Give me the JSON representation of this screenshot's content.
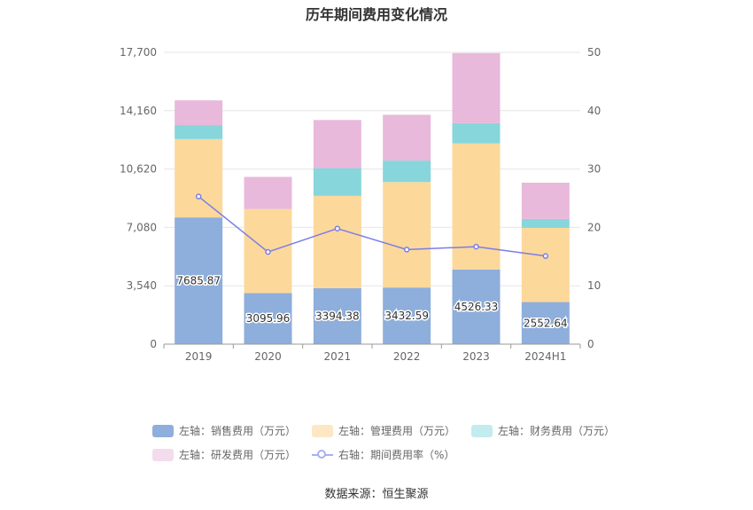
{
  "chart_data": {
    "type": "bar",
    "title": "历年期间费用变化情况",
    "categories": [
      "2019",
      "2020",
      "2021",
      "2022",
      "2023",
      "2024H1"
    ],
    "left_axis": {
      "min": 0,
      "max": 17700,
      "ticks": [
        "0",
        "3,540",
        "7,080",
        "10,620",
        "14,160",
        "17,700"
      ]
    },
    "right_axis": {
      "min": 0,
      "max": 50,
      "ticks": [
        "0",
        "10",
        "20",
        "30",
        "40",
        "50"
      ]
    },
    "series": [
      {
        "name": "左轴：销售费用（万元）",
        "kind": "bar",
        "axis": "left",
        "color": "#8eaedb",
        "values": [
          7685.87,
          3095.96,
          3394.38,
          3432.59,
          4526.33,
          2552.64
        ],
        "labels": [
          "7685.87",
          "3095.96",
          "3394.38",
          "3432.59",
          "4526.33",
          "2552.64"
        ]
      },
      {
        "name": "左轴：管理费用（万元）",
        "kind": "bar",
        "axis": "left",
        "color": "#fdd89b",
        "values": [
          4750,
          5100,
          5600,
          6400,
          7650,
          4500
        ]
      },
      {
        "name": "左轴：财务费用（万元）",
        "kind": "bar",
        "axis": "left",
        "color": "#87d6db",
        "values": [
          850,
          -50,
          1680,
          1300,
          1230,
          540
        ]
      },
      {
        "name": "左轴：研发费用（万元）",
        "kind": "bar",
        "axis": "left",
        "color": "#e8b9da",
        "values": [
          1500,
          1950,
          2920,
          2780,
          4250,
          2200
        ]
      },
      {
        "name": "右轴：期间费用率（%）",
        "kind": "line",
        "axis": "right",
        "color": "#7a7ee8",
        "values": [
          25.3,
          15.8,
          19.8,
          16.2,
          16.7,
          15.1
        ]
      }
    ],
    "legend_position": "bottom",
    "grid": true
  },
  "source": "数据来源：恒生聚源"
}
